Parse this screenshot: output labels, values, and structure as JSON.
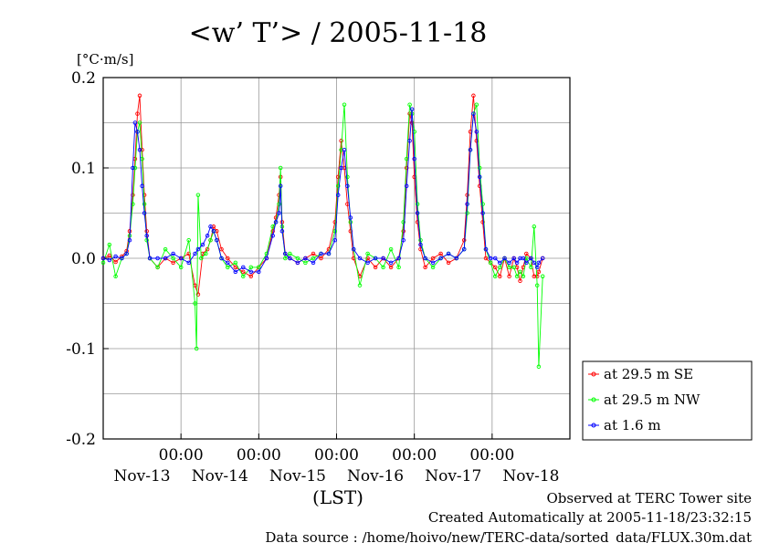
{
  "chart_data": {
    "type": "line",
    "title": "<w’ T’> / 2005-11-18",
    "yunit": "[°C·m/s]",
    "xlabel": "(LST)",
    "ylim": [
      -0.2,
      0.2
    ],
    "xlim": [
      0,
      6
    ],
    "yticks": [
      {
        "value": 0.2,
        "label": "0.2"
      },
      {
        "value": 0.1,
        "label": "0.1"
      },
      {
        "value": 0.0,
        "label": "0.0"
      },
      {
        "value": -0.1,
        "label": "-0.1"
      },
      {
        "value": -0.2,
        "label": "-0.2"
      }
    ],
    "ygrid": [
      0.15,
      0.1,
      0.05,
      0.0,
      -0.05,
      -0.1,
      -0.15
    ],
    "xticks_time": [
      {
        "value": 1,
        "label": "00:00"
      },
      {
        "value": 2,
        "label": "00:00"
      },
      {
        "value": 3,
        "label": "00:00"
      },
      {
        "value": 4,
        "label": "00:00"
      },
      {
        "value": 5,
        "label": "00:00"
      }
    ],
    "xticks_date": [
      {
        "value": 0.5,
        "label": "Nov-13"
      },
      {
        "value": 1.5,
        "label": "Nov-14"
      },
      {
        "value": 2.5,
        "label": "Nov-15"
      },
      {
        "value": 3.5,
        "label": "Nov-16"
      },
      {
        "value": 4.5,
        "label": "Nov-17"
      },
      {
        "value": 5.5,
        "label": "Nov-18"
      }
    ],
    "legend_position": "right",
    "grid": true,
    "series": [
      {
        "name": "at 29.5 m SE",
        "color": "#ff0000",
        "points": [
          [
            0.0,
            0.0
          ],
          [
            0.08,
            0.003
          ],
          [
            0.16,
            -0.004
          ],
          [
            0.24,
            0.002
          ],
          [
            0.3,
            0.008
          ],
          [
            0.34,
            0.03
          ],
          [
            0.38,
            0.07
          ],
          [
            0.41,
            0.11
          ],
          [
            0.44,
            0.16
          ],
          [
            0.47,
            0.18
          ],
          [
            0.5,
            0.12
          ],
          [
            0.53,
            0.07
          ],
          [
            0.56,
            0.03
          ],
          [
            0.6,
            0.0
          ],
          [
            0.7,
            -0.01
          ],
          [
            0.8,
            0.0
          ],
          [
            0.9,
            -0.005
          ],
          [
            1.0,
            0.0
          ],
          [
            1.1,
            0.005
          ],
          [
            1.18,
            -0.03
          ],
          [
            1.22,
            -0.04
          ],
          [
            1.28,
            0.005
          ],
          [
            1.34,
            0.01
          ],
          [
            1.38,
            0.02
          ],
          [
            1.42,
            0.035
          ],
          [
            1.46,
            0.03
          ],
          [
            1.52,
            0.01
          ],
          [
            1.6,
            0.0
          ],
          [
            1.7,
            -0.01
          ],
          [
            1.8,
            -0.015
          ],
          [
            1.9,
            -0.02
          ],
          [
            2.0,
            -0.01
          ],
          [
            2.1,
            0.0
          ],
          [
            2.18,
            0.03
          ],
          [
            2.22,
            0.045
          ],
          [
            2.26,
            0.07
          ],
          [
            2.28,
            0.09
          ],
          [
            2.3,
            0.04
          ],
          [
            2.34,
            0.005
          ],
          [
            2.4,
            0.0
          ],
          [
            2.5,
            -0.005
          ],
          [
            2.6,
            0.0
          ],
          [
            2.7,
            0.005
          ],
          [
            2.8,
            0.0
          ],
          [
            2.9,
            0.01
          ],
          [
            2.98,
            0.04
          ],
          [
            3.02,
            0.09
          ],
          [
            3.06,
            0.13
          ],
          [
            3.1,
            0.1
          ],
          [
            3.14,
            0.06
          ],
          [
            3.18,
            0.03
          ],
          [
            3.22,
            0.0
          ],
          [
            3.3,
            -0.02
          ],
          [
            3.4,
            0.0
          ],
          [
            3.5,
            -0.01
          ],
          [
            3.6,
            0.0
          ],
          [
            3.7,
            -0.01
          ],
          [
            3.8,
            0.0
          ],
          [
            3.86,
            0.03
          ],
          [
            3.9,
            0.1
          ],
          [
            3.94,
            0.16
          ],
          [
            3.97,
            0.15
          ],
          [
            4.0,
            0.09
          ],
          [
            4.04,
            0.04
          ],
          [
            4.08,
            0.01
          ],
          [
            4.14,
            -0.01
          ],
          [
            4.24,
            0.0
          ],
          [
            4.34,
            0.005
          ],
          [
            4.44,
            -0.005
          ],
          [
            4.54,
            0.0
          ],
          [
            4.64,
            0.02
          ],
          [
            4.68,
            0.07
          ],
          [
            4.72,
            0.14
          ],
          [
            4.76,
            0.18
          ],
          [
            4.8,
            0.13
          ],
          [
            4.84,
            0.08
          ],
          [
            4.88,
            0.04
          ],
          [
            4.92,
            0.0
          ],
          [
            4.98,
            -0.005
          ],
          [
            5.04,
            -0.01
          ],
          [
            5.1,
            -0.02
          ],
          [
            5.16,
            0.0
          ],
          [
            5.22,
            -0.02
          ],
          [
            5.28,
            0.0
          ],
          [
            5.32,
            -0.01
          ],
          [
            5.36,
            -0.025
          ],
          [
            5.4,
            -0.01
          ],
          [
            5.44,
            0.005
          ],
          [
            5.5,
            0.0
          ],
          [
            5.54,
            -0.02
          ],
          [
            5.58,
            -0.02
          ],
          [
            5.6,
            -0.015
          ],
          [
            5.65,
            0.0
          ]
        ]
      },
      {
        "name": "at 29.5 m NW",
        "color": "#00ff00",
        "points": [
          [
            0.0,
            -0.005
          ],
          [
            0.08,
            0.015
          ],
          [
            0.16,
            -0.02
          ],
          [
            0.24,
            0.0
          ],
          [
            0.3,
            0.005
          ],
          [
            0.34,
            0.025
          ],
          [
            0.38,
            0.06
          ],
          [
            0.41,
            0.1
          ],
          [
            0.44,
            0.14
          ],
          [
            0.47,
            0.15
          ],
          [
            0.5,
            0.11
          ],
          [
            0.53,
            0.06
          ],
          [
            0.56,
            0.02
          ],
          [
            0.6,
            0.0
          ],
          [
            0.7,
            -0.01
          ],
          [
            0.8,
            0.01
          ],
          [
            0.9,
            0.0
          ],
          [
            1.0,
            -0.01
          ],
          [
            1.1,
            0.02
          ],
          [
            1.18,
            -0.05
          ],
          [
            1.2,
            -0.1
          ],
          [
            1.22,
            0.07
          ],
          [
            1.26,
            0.0
          ],
          [
            1.32,
            0.005
          ],
          [
            1.38,
            0.02
          ],
          [
            1.42,
            0.03
          ],
          [
            1.46,
            0.02
          ],
          [
            1.52,
            0.0
          ],
          [
            1.6,
            -0.01
          ],
          [
            1.7,
            -0.005
          ],
          [
            1.8,
            -0.02
          ],
          [
            1.9,
            -0.01
          ],
          [
            2.0,
            -0.01
          ],
          [
            2.1,
            0.005
          ],
          [
            2.18,
            0.035
          ],
          [
            2.22,
            0.04
          ],
          [
            2.26,
            0.06
          ],
          [
            2.28,
            0.1
          ],
          [
            2.3,
            0.035
          ],
          [
            2.34,
            0.0
          ],
          [
            2.4,
            0.005
          ],
          [
            2.5,
            0.0
          ],
          [
            2.6,
            -0.005
          ],
          [
            2.7,
            0.0
          ],
          [
            2.8,
            0.005
          ],
          [
            2.9,
            0.005
          ],
          [
            2.98,
            0.03
          ],
          [
            3.02,
            0.08
          ],
          [
            3.06,
            0.12
          ],
          [
            3.1,
            0.17
          ],
          [
            3.14,
            0.09
          ],
          [
            3.18,
            0.04
          ],
          [
            3.22,
            0.01
          ],
          [
            3.3,
            -0.03
          ],
          [
            3.4,
            0.005
          ],
          [
            3.5,
            0.0
          ],
          [
            3.6,
            -0.01
          ],
          [
            3.7,
            0.01
          ],
          [
            3.8,
            -0.01
          ],
          [
            3.86,
            0.04
          ],
          [
            3.9,
            0.11
          ],
          [
            3.94,
            0.17
          ],
          [
            3.97,
            0.16
          ],
          [
            4.0,
            0.14
          ],
          [
            4.04,
            0.06
          ],
          [
            4.08,
            0.02
          ],
          [
            4.14,
            0.0
          ],
          [
            4.24,
            -0.01
          ],
          [
            4.34,
            0.0
          ],
          [
            4.44,
            0.005
          ],
          [
            4.54,
            0.0
          ],
          [
            4.64,
            0.01
          ],
          [
            4.68,
            0.05
          ],
          [
            4.72,
            0.12
          ],
          [
            4.76,
            0.16
          ],
          [
            4.8,
            0.17
          ],
          [
            4.84,
            0.1
          ],
          [
            4.88,
            0.06
          ],
          [
            4.92,
            0.01
          ],
          [
            4.98,
            -0.005
          ],
          [
            5.04,
            -0.02
          ],
          [
            5.1,
            -0.01
          ],
          [
            5.16,
            0.0
          ],
          [
            5.22,
            -0.01
          ],
          [
            5.28,
            -0.01
          ],
          [
            5.32,
            -0.02
          ],
          [
            5.36,
            -0.015
          ],
          [
            5.4,
            -0.02
          ],
          [
            5.44,
            0.0
          ],
          [
            5.5,
            -0.01
          ],
          [
            5.54,
            0.035
          ],
          [
            5.58,
            -0.03
          ],
          [
            5.6,
            -0.12
          ],
          [
            5.65,
            -0.02
          ]
        ]
      },
      {
        "name": "at 1.6 m",
        "color": "#0000ff",
        "points": [
          [
            0.0,
            0.0
          ],
          [
            0.08,
            -0.002
          ],
          [
            0.16,
            0.002
          ],
          [
            0.24,
            0.0
          ],
          [
            0.3,
            0.005
          ],
          [
            0.34,
            0.02
          ],
          [
            0.38,
            0.1
          ],
          [
            0.41,
            0.15
          ],
          [
            0.44,
            0.14
          ],
          [
            0.47,
            0.12
          ],
          [
            0.5,
            0.08
          ],
          [
            0.53,
            0.05
          ],
          [
            0.56,
            0.025
          ],
          [
            0.6,
            0.0
          ],
          [
            0.7,
            0.0
          ],
          [
            0.8,
            0.0
          ],
          [
            0.9,
            0.005
          ],
          [
            1.0,
            0.0
          ],
          [
            1.1,
            -0.005
          ],
          [
            1.18,
            0.005
          ],
          [
            1.22,
            0.01
          ],
          [
            1.28,
            0.015
          ],
          [
            1.34,
            0.025
          ],
          [
            1.38,
            0.035
          ],
          [
            1.42,
            0.03
          ],
          [
            1.46,
            0.02
          ],
          [
            1.52,
            0.0
          ],
          [
            1.6,
            -0.005
          ],
          [
            1.7,
            -0.015
          ],
          [
            1.8,
            -0.01
          ],
          [
            1.9,
            -0.015
          ],
          [
            2.0,
            -0.015
          ],
          [
            2.1,
            0.0
          ],
          [
            2.18,
            0.025
          ],
          [
            2.22,
            0.04
          ],
          [
            2.26,
            0.05
          ],
          [
            2.28,
            0.08
          ],
          [
            2.3,
            0.03
          ],
          [
            2.34,
            0.005
          ],
          [
            2.4,
            0.0
          ],
          [
            2.5,
            -0.005
          ],
          [
            2.6,
            0.0
          ],
          [
            2.7,
            -0.005
          ],
          [
            2.8,
            0.005
          ],
          [
            2.9,
            0.005
          ],
          [
            2.98,
            0.02
          ],
          [
            3.02,
            0.07
          ],
          [
            3.06,
            0.1
          ],
          [
            3.1,
            0.12
          ],
          [
            3.14,
            0.08
          ],
          [
            3.18,
            0.045
          ],
          [
            3.22,
            0.01
          ],
          [
            3.3,
            0.0
          ],
          [
            3.4,
            -0.005
          ],
          [
            3.5,
            0.0
          ],
          [
            3.6,
            0.0
          ],
          [
            3.7,
            -0.005
          ],
          [
            3.8,
            0.0
          ],
          [
            3.86,
            0.02
          ],
          [
            3.9,
            0.08
          ],
          [
            3.94,
            0.13
          ],
          [
            3.97,
            0.165
          ],
          [
            4.0,
            0.11
          ],
          [
            4.04,
            0.05
          ],
          [
            4.08,
            0.015
          ],
          [
            4.14,
            0.0
          ],
          [
            4.24,
            -0.005
          ],
          [
            4.34,
            0.0
          ],
          [
            4.44,
            0.005
          ],
          [
            4.54,
            0.0
          ],
          [
            4.64,
            0.01
          ],
          [
            4.68,
            0.06
          ],
          [
            4.72,
            0.12
          ],
          [
            4.76,
            0.16
          ],
          [
            4.8,
            0.14
          ],
          [
            4.84,
            0.09
          ],
          [
            4.88,
            0.05
          ],
          [
            4.92,
            0.01
          ],
          [
            4.98,
            0.0
          ],
          [
            5.04,
            0.0
          ],
          [
            5.1,
            -0.005
          ],
          [
            5.16,
            0.0
          ],
          [
            5.22,
            -0.005
          ],
          [
            5.28,
            0.0
          ],
          [
            5.32,
            -0.005
          ],
          [
            5.36,
            0.0
          ],
          [
            5.4,
            0.0
          ],
          [
            5.44,
            -0.005
          ],
          [
            5.5,
            0.0
          ],
          [
            5.54,
            -0.005
          ],
          [
            5.58,
            -0.01
          ],
          [
            5.6,
            -0.005
          ],
          [
            5.65,
            0.0
          ]
        ]
      }
    ]
  },
  "footer": {
    "observed": "Observed at TERC Tower site",
    "created": "Created Automatically at 2005-11-18/23:32:15",
    "source": "Data source : /home/hoivo/new/TERC-data/sorted_data/FLUX.30m.dat"
  }
}
